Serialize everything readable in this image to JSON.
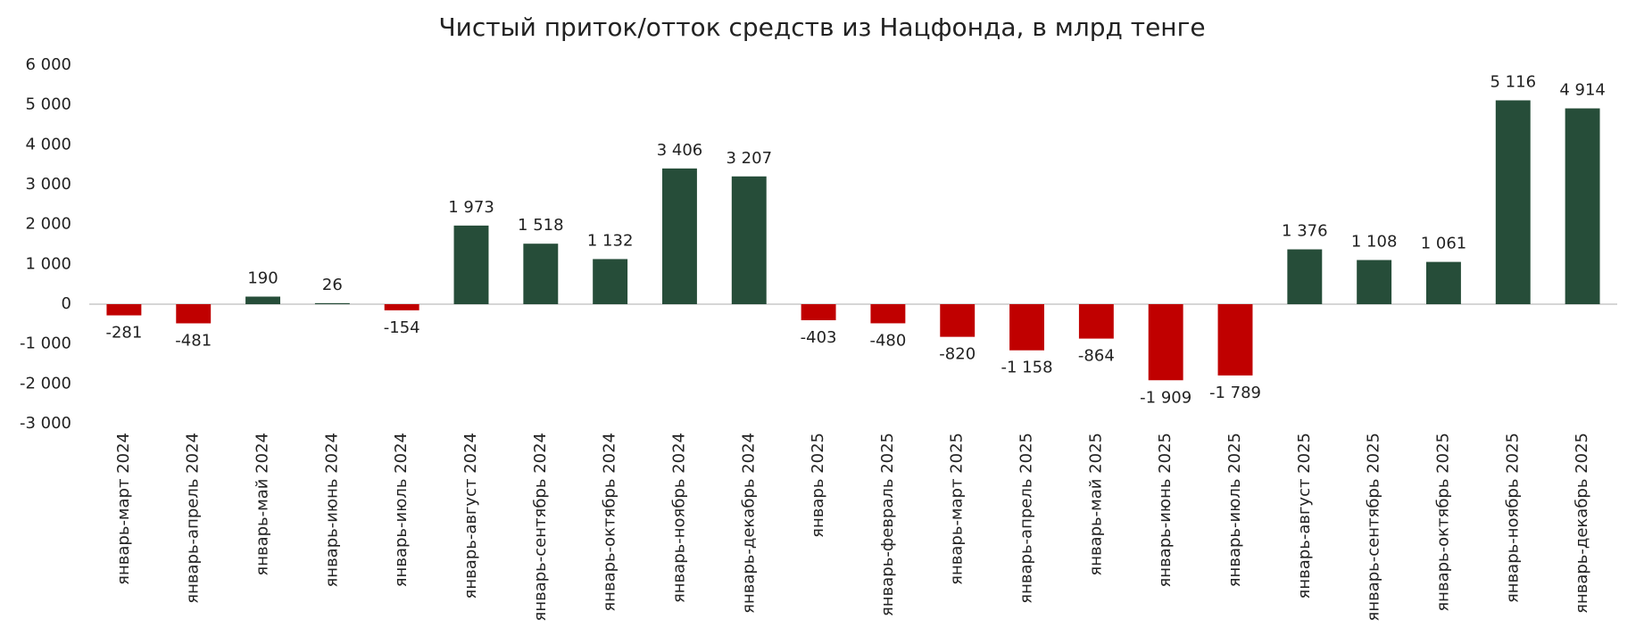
{
  "chart_data": {
    "type": "bar",
    "title": "Чистый приток/отток средств из Нацфонда, в млрд тенге",
    "categories": [
      "январь-март 2024",
      "январь-апрель 2024",
      "январь-май 2024",
      "январь-июнь 2024",
      "январь-июль 2024",
      "январь-август 2024",
      "январь-сентябрь 2024",
      "январь-октябрь 2024",
      "январь-ноябрь 2024",
      "январь-декабрь 2024",
      "январь 2025",
      "январь-февраль 2025",
      "январь-март 2025",
      "январь-апрель 2025",
      "январь-май 2025",
      "январь-июнь 2025",
      "январь-июль 2025",
      "январь-август 2025",
      "январь-сентябрь 2025",
      "январь-октябрь 2025",
      "январь-ноябрь 2025",
      "январь-декабрь 2025"
    ],
    "values": [
      -281,
      -481,
      190,
      26,
      -154,
      1973,
      1518,
      1132,
      3406,
      3207,
      -403,
      -480,
      -820,
      -1158,
      -864,
      -1909,
      -1789,
      1376,
      1108,
      1061,
      5116,
      4914
    ],
    "value_labels": [
      "-281",
      "-481",
      "190",
      "26",
      "-154",
      "1 973",
      "1 518",
      "1 132",
      "3 406",
      "3 207",
      "-403",
      "-480",
      "-820",
      "-1 158",
      "-864",
      "-1 909",
      "-1 789",
      "1 376",
      "1 108",
      "1 061",
      "5 116",
      "4 914"
    ],
    "color": "#264d39",
    "negative_color": "#c00000",
    "ylim": [
      -3000,
      6000
    ],
    "yticks": [
      {
        "value": -3000,
        "label": "-3 000"
      },
      {
        "value": -2000,
        "label": "-2 000"
      },
      {
        "value": -1000,
        "label": "-1 000"
      },
      0,
      {
        "value": 1000,
        "label": "1 000"
      },
      {
        "value": 2000,
        "label": "2 000"
      },
      {
        "value": 3000,
        "label": "3 000"
      },
      {
        "value": 4000,
        "label": "4 000"
      },
      {
        "value": 5000,
        "label": "5 000"
      },
      {
        "value": 6000,
        "label": "6 000"
      }
    ],
    "grid": false
  }
}
